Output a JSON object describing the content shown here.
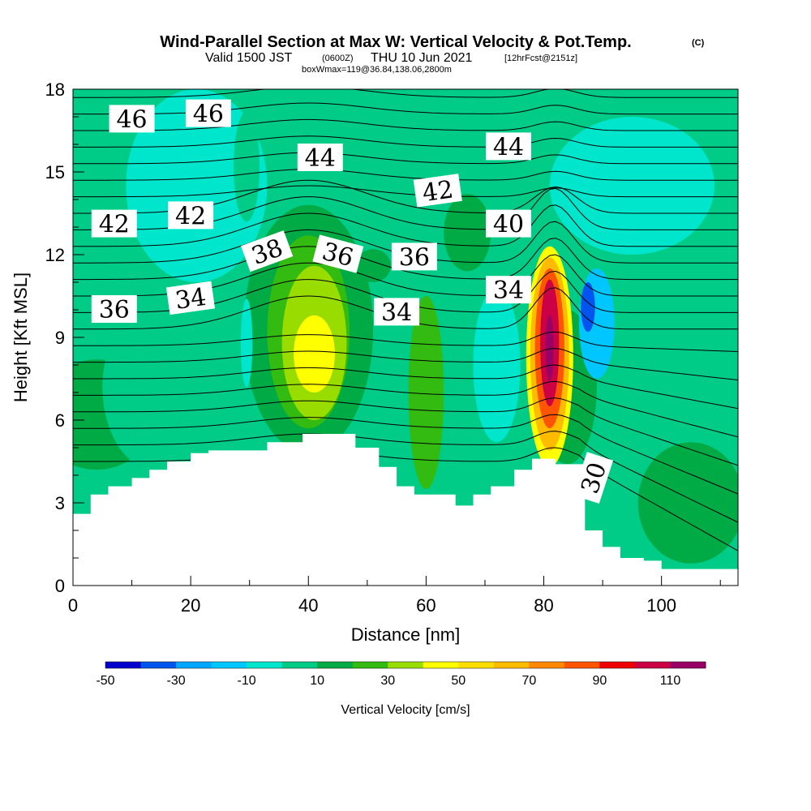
{
  "header": {
    "title": "Wind-Parallel Section at Max W: Vertical Velocity & Pot.Temp.",
    "copyright": "(C)",
    "valid_prefix": "Valid 1500 JST",
    "valid_utc": "(0600Z)",
    "valid_date": "THU 10 Jun 2021",
    "forecast_info": "[12hrFcst@2151z]",
    "box_info": "boxWmax=119@36.84,138.06,2800m"
  },
  "chart_data": {
    "type": "heatmap",
    "title": "Wind-Parallel Section at Max W: Vertical Velocity & Pot.Temp.",
    "xlabel": "Distance [nm]",
    "ylabel": "Height [Kft MSL]",
    "xlim": [
      0,
      113
    ],
    "ylim": [
      0,
      18
    ],
    "x_ticks": [
      0,
      20,
      40,
      60,
      80,
      100
    ],
    "y_ticks": [
      0,
      3,
      6,
      9,
      12,
      15,
      18
    ],
    "terrain": {
      "x": [
        0,
        3,
        3,
        6,
        6,
        10,
        10,
        13,
        13,
        16,
        16,
        20,
        20,
        23,
        23,
        33,
        33,
        39,
        39,
        48,
        48,
        52,
        52,
        55,
        55,
        58,
        58,
        65,
        65,
        68,
        68,
        71,
        71,
        75,
        75,
        78,
        78,
        82,
        82,
        87,
        87,
        90,
        90,
        93,
        93,
        97,
        97,
        100,
        100,
        113
      ],
      "y": [
        2.6,
        2.6,
        3.3,
        3.3,
        3.6,
        3.6,
        3.9,
        3.9,
        4.2,
        4.2,
        4.5,
        4.5,
        4.8,
        4.8,
        4.9,
        4.9,
        5.2,
        5.2,
        5.5,
        5.5,
        5.0,
        5.0,
        4.3,
        4.3,
        3.6,
        3.6,
        3.3,
        3.3,
        2.9,
        2.9,
        3.3,
        3.3,
        3.6,
        3.6,
        4.2,
        4.2,
        4.6,
        4.6,
        4.4,
        4.4,
        2.0,
        2.0,
        1.4,
        1.4,
        1.0,
        1.0,
        0.9,
        0.9,
        0.6,
        0.6
      ]
    },
    "velocity_features": [
      {
        "x": 21,
        "y": 14.5,
        "rx": 12,
        "ry": 3.5,
        "w": -5
      },
      {
        "x": 95,
        "y": 14.5,
        "rx": 14,
        "ry": 2.5,
        "w": -5
      },
      {
        "x": 4,
        "y": 6.2,
        "rx": 10,
        "ry": 2.0,
        "w": 10
      },
      {
        "x": 14,
        "y": 7.2,
        "rx": 9,
        "ry": 3.0,
        "w": 5
      },
      {
        "x": 29.5,
        "y": 15.2,
        "rx": 2.2,
        "ry": 2.0,
        "w": 5
      },
      {
        "x": 40,
        "y": 9.3,
        "rx": 11,
        "ry": 4.5,
        "w": 10
      },
      {
        "x": 40,
        "y": 9.2,
        "rx": 7,
        "ry": 3.5,
        "w": 20
      },
      {
        "x": 41,
        "y": 8.8,
        "rx": 5.5,
        "ry": 2.8,
        "w": 30
      },
      {
        "x": 41,
        "y": 8.4,
        "rx": 3.5,
        "ry": 1.4,
        "w": 40
      },
      {
        "x": 51,
        "y": 11.6,
        "rx": 3,
        "ry": 0.6,
        "w": 10
      },
      {
        "x": 60,
        "y": 7.0,
        "rx": 3,
        "ry": 3.5,
        "w": 20
      },
      {
        "x": 67,
        "y": 12.8,
        "rx": 4,
        "ry": 1.4,
        "w": 10
      },
      {
        "x": 72,
        "y": 8.0,
        "rx": 4,
        "ry": 2.8,
        "w": -5
      },
      {
        "x": 72,
        "y": 8.2,
        "rx": 2,
        "ry": 1.7,
        "w": -12
      },
      {
        "x": 29.5,
        "y": 8.8,
        "rx": 1,
        "ry": 1.6,
        "w": -12
      },
      {
        "x": 84,
        "y": 7.2,
        "rx": 5,
        "ry": 2.8,
        "w": 10
      },
      {
        "x": 81,
        "y": 8.3,
        "rx": 4,
        "ry": 4.0,
        "w": 40
      },
      {
        "x": 81,
        "y": 8.4,
        "rx": 3.3,
        "ry": 3.5,
        "w": 60
      },
      {
        "x": 81,
        "y": 8.6,
        "rx": 2.5,
        "ry": 2.9,
        "w": 80
      },
      {
        "x": 81,
        "y": 8.8,
        "rx": 1.6,
        "ry": 2.3,
        "w": 100
      },
      {
        "x": 81,
        "y": 8.6,
        "rx": 0.7,
        "ry": 1.2,
        "w": 115
      },
      {
        "x": 89,
        "y": 9.5,
        "rx": 3,
        "ry": 2.0,
        "w": -20
      },
      {
        "x": 87.5,
        "y": 10.1,
        "rx": 1.2,
        "ry": 0.9,
        "w": -40
      },
      {
        "x": 105,
        "y": 3.0,
        "rx": 9,
        "ry": 2.2,
        "w": 10
      }
    ],
    "theta_labels": [
      {
        "value": "46",
        "x": 10,
        "y": 16.9,
        "rot": 0
      },
      {
        "value": "46",
        "x": 23,
        "y": 17.1,
        "rot": 0
      },
      {
        "value": "44",
        "x": 42,
        "y": 15.5,
        "rot": 0
      },
      {
        "value": "44",
        "x": 74,
        "y": 15.9,
        "rot": 0
      },
      {
        "value": "42",
        "x": 7,
        "y": 13.1,
        "rot": 0
      },
      {
        "value": "42",
        "x": 20,
        "y": 13.4,
        "rot": 0
      },
      {
        "value": "42",
        "x": 62,
        "y": 14.3,
        "rot": -8
      },
      {
        "value": "40",
        "x": 74,
        "y": 13.1,
        "rot": 0
      },
      {
        "value": "38",
        "x": 33,
        "y": 12.1,
        "rot": -20
      },
      {
        "value": "36",
        "x": 45,
        "y": 12.0,
        "rot": 15
      },
      {
        "value": "36",
        "x": 58,
        "y": 11.9,
        "rot": 0
      },
      {
        "value": "36",
        "x": 7,
        "y": 10.0,
        "rot": 0
      },
      {
        "value": "34",
        "x": 20,
        "y": 10.4,
        "rot": -8
      },
      {
        "value": "34",
        "x": 55,
        "y": 9.9,
        "rot": 0
      },
      {
        "value": "34",
        "x": 74,
        "y": 10.7,
        "rot": 0
      },
      {
        "value": "30",
        "x": 88.5,
        "y": 3.9,
        "rot": -72
      }
    ],
    "colorbar": {
      "title": "Vertical Velocity [cm/s]",
      "labels": [
        "-50",
        "-30",
        "-10",
        "10",
        "30",
        "50",
        "70",
        "90",
        "110"
      ],
      "range": [
        -50,
        120
      ],
      "step": 10
    },
    "colors": {
      "-50": "#0000cc",
      "-40": "#0055ee",
      "-30": "#00a6ff",
      "-20": "#00c6ff",
      "-10": "#00e6cc",
      "0": "#00cc88",
      "10": "#00aa44",
      "20": "#33bb11",
      "30": "#99dd00",
      "40": "#ffff00",
      "50": "#ffdd00",
      "60": "#ffbb00",
      "70": "#ff8800",
      "80": "#ff5500",
      "90": "#ee0000",
      "100": "#cc0044",
      "110": "#990066",
      "120": "#660099"
    }
  }
}
